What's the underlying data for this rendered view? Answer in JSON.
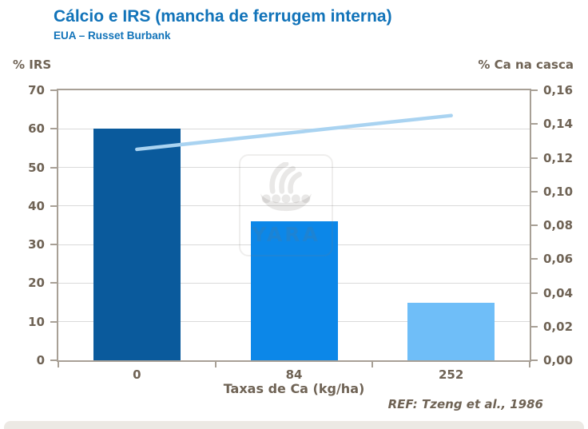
{
  "header": {
    "title": "Cálcio e IRS (mancha de ferrugem interna)",
    "subtitle": "EUA – Russet Burbank"
  },
  "chart_data": {
    "type": "bar",
    "subtype": "combo-bar-line-dual-axis",
    "title": "Cálcio e IRS (mancha de ferrugem interna)",
    "subtitle": "EUA – Russet Burbank",
    "categories": [
      "0",
      "84",
      "252"
    ],
    "xlabel": "Taxas de Ca (kg/ha)",
    "series": [
      {
        "name": "% IRS",
        "type": "bar",
        "axis": "left",
        "values": [
          60,
          36,
          15
        ],
        "bar_colors": [
          "#0a5a9c",
          "#0c87e8",
          "#6fbef8"
        ]
      },
      {
        "name": "% Ca na casca",
        "type": "line",
        "axis": "right",
        "values": [
          0.125,
          0.135,
          0.145
        ],
        "color": "#a9d3f1"
      }
    ],
    "left_axis": {
      "label": "% IRS",
      "min": 0,
      "max": 70,
      "tick_values": [
        0,
        10,
        20,
        30,
        40,
        50,
        60,
        70
      ],
      "tick_labels": [
        "0",
        "10",
        "20",
        "30",
        "40",
        "50",
        "60",
        "70"
      ]
    },
    "right_axis": {
      "label": "% Ca na casca",
      "min": 0,
      "max": 0.16,
      "tick_values": [
        0,
        0.02,
        0.04,
        0.06,
        0.08,
        0.1,
        0.12,
        0.14,
        0.16
      ],
      "tick_labels": [
        "0,00",
        "0,02",
        "0,04",
        "0,06",
        "0,08",
        "0,10",
        "0,12",
        "0,14",
        "0,16"
      ]
    },
    "grid": "horizontal-at-left-axis-ticks",
    "legend": "none"
  },
  "watermark": {
    "icon": "viking-ship-icon",
    "text": "YARA"
  },
  "footer": {
    "reference": "REF: Tzeng et al., 1986"
  },
  "colors": {
    "title": "#1173b9",
    "axis_text": "#6f6355",
    "plot_border": "#a8a096",
    "gridline": "#dadada",
    "footer_strip": "#ece9e4"
  }
}
